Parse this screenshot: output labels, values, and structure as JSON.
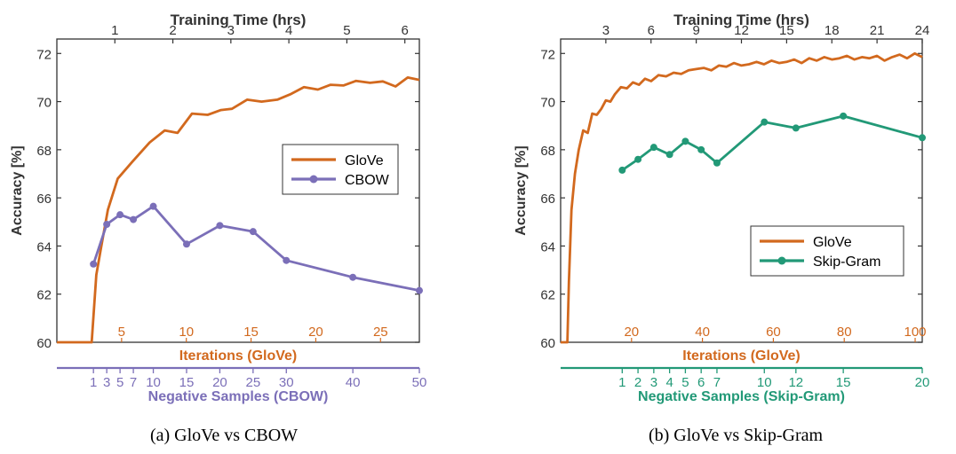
{
  "colors": {
    "glove": "#d2691e",
    "cbow": "#7b6fb8",
    "skipgram": "#229977",
    "axis": "#333333",
    "text": "#333333"
  },
  "chart_data": [
    {
      "type": "line",
      "caption": "(a)  GloVe vs CBOW",
      "ylabel": "Accuracy [%]",
      "ylim": [
        60,
        72.6
      ],
      "yticks": [
        "60",
        "62",
        "64",
        "66",
        "68",
        "70",
        "72"
      ],
      "top_axis": {
        "label": "Training Time (hrs)",
        "range": [
          0,
          6.25
        ],
        "ticks": [
          "1",
          "2",
          "3",
          "4",
          "5",
          "6"
        ]
      },
      "iter_axis": {
        "label": "Iterations (GloVe)",
        "range": [
          0,
          28
        ],
        "ticks": [
          "5",
          "10",
          "15",
          "20",
          "25"
        ]
      },
      "neg_axis": {
        "label": "Negative Samples (CBOW)",
        "range": [
          -4.5,
          50
        ],
        "ticks": [
          "1",
          "3",
          "5",
          "7",
          "10",
          "15",
          "20",
          "25",
          "30",
          "40",
          "50"
        ]
      },
      "legend": {
        "position": "center-right",
        "entries": [
          {
            "name": "GloVe",
            "series": "glove"
          },
          {
            "name": "CBOW",
            "series": "comparison"
          }
        ]
      },
      "series": [
        {
          "name": "GloVe",
          "key": "glove",
          "x_axis": "top",
          "marker": false,
          "x": [
            0,
            0.6,
            0.68,
            0.76,
            0.88,
            1.05,
            1.3,
            1.6,
            1.86,
            2.08,
            2.33,
            2.6,
            2.83,
            3.02,
            3.28,
            3.53,
            3.8,
            4.04,
            4.26,
            4.5,
            4.72,
            4.94,
            5.16,
            5.4,
            5.62,
            5.84,
            6.05,
            6.25
          ],
          "values": [
            60,
            60,
            62.8,
            63.9,
            65.5,
            66.8,
            67.5,
            68.3,
            68.8,
            68.7,
            69.5,
            69.45,
            69.65,
            69.7,
            70.08,
            70.0,
            70.08,
            70.32,
            70.6,
            70.5,
            70.7,
            70.67,
            70.86,
            70.78,
            70.84,
            70.63,
            71.0,
            70.9
          ]
        },
        {
          "name": "CBOW",
          "key": "comparison",
          "x_axis": "neg",
          "marker": true,
          "x": [
            1,
            3,
            5,
            7,
            10,
            15,
            20,
            25,
            30,
            40,
            50
          ],
          "values": [
            63.25,
            64.9,
            65.3,
            65.1,
            65.65,
            64.08,
            64.85,
            64.6,
            63.4,
            62.7,
            62.15
          ]
        }
      ]
    },
    {
      "type": "line",
      "caption": "(b)  GloVe vs Skip-Gram",
      "ylabel": "Accuracy [%]",
      "ylim": [
        60,
        72.6
      ],
      "yticks": [
        "60",
        "62",
        "64",
        "66",
        "68",
        "70",
        "72"
      ],
      "top_axis": {
        "label": "Training Time (hrs)",
        "range": [
          0,
          24
        ],
        "ticks": [
          "3",
          "6",
          "9",
          "12",
          "15",
          "18",
          "21",
          "24"
        ]
      },
      "iter_axis": {
        "label": "Iterations (GloVe)",
        "range": [
          0,
          102
        ],
        "ticks": [
          "20",
          "40",
          "60",
          "80",
          "100"
        ]
      },
      "neg_axis": {
        "label": "Negative Samples (Skip-Gram)",
        "range": [
          -2.9,
          20
        ],
        "ticks": [
          "1",
          "2",
          "3",
          "4",
          "5",
          "6",
          "7",
          "10",
          "12",
          "15",
          "20"
        ]
      },
      "legend": {
        "position": "lower-right",
        "entries": [
          {
            "name": "GloVe",
            "series": "glove"
          },
          {
            "name": "Skip-Gram",
            "series": "comparison"
          }
        ]
      },
      "series": [
        {
          "name": "GloVe",
          "key": "glove",
          "x_axis": "top",
          "marker": false,
          "x": [
            0,
            0.45,
            0.55,
            0.72,
            0.95,
            1.2,
            1.5,
            1.8,
            2.1,
            2.4,
            2.7,
            3.0,
            3.3,
            3.6,
            4.0,
            4.4,
            4.8,
            5.2,
            5.6,
            6.0,
            6.5,
            7.0,
            7.5,
            8.0,
            8.5,
            9.0,
            9.5,
            10.0,
            10.5,
            11.0,
            11.5,
            12.0,
            12.5,
            13.0,
            13.5,
            14.0,
            14.5,
            15.0,
            15.5,
            16.0,
            16.5,
            17.0,
            17.5,
            18.0,
            18.5,
            19.0,
            19.5,
            20.0,
            20.5,
            21.0,
            21.5,
            22.0,
            22.5,
            23.0,
            23.5,
            24.0
          ],
          "values": [
            60,
            60,
            62.5,
            65.5,
            67.0,
            68.0,
            68.8,
            68.7,
            69.5,
            69.45,
            69.7,
            70.05,
            70.0,
            70.3,
            70.6,
            70.55,
            70.8,
            70.7,
            70.95,
            70.85,
            71.1,
            71.05,
            71.2,
            71.15,
            71.3,
            71.35,
            71.4,
            71.3,
            71.5,
            71.45,
            71.6,
            71.5,
            71.55,
            71.65,
            71.55,
            71.7,
            71.6,
            71.65,
            71.75,
            71.6,
            71.8,
            71.7,
            71.85,
            71.75,
            71.8,
            71.9,
            71.75,
            71.85,
            71.8,
            71.9,
            71.7,
            71.85,
            71.95,
            71.8,
            72.0,
            71.85
          ]
        },
        {
          "name": "Skip-Gram",
          "key": "comparison",
          "x_axis": "neg",
          "marker": true,
          "x": [
            1,
            2,
            3,
            4,
            5,
            6,
            7,
            10,
            12,
            15,
            20
          ],
          "values": [
            67.15,
            67.6,
            68.1,
            67.8,
            68.35,
            68.0,
            67.45,
            69.15,
            68.9,
            69.4,
            68.5
          ]
        }
      ]
    }
  ]
}
